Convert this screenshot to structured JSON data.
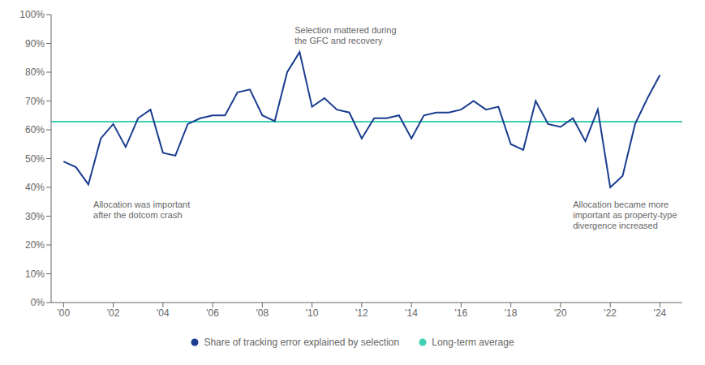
{
  "chart_data": {
    "type": "line",
    "x": [
      2000,
      2000.5,
      2001,
      2001.5,
      2002,
      2002.5,
      2003,
      2003.5,
      2004,
      2004.5,
      2005,
      2005.5,
      2006,
      2006.5,
      2007,
      2007.5,
      2008,
      2008.5,
      2009,
      2009.5,
      2010,
      2010.5,
      2011,
      2011.5,
      2012,
      2012.5,
      2013,
      2013.5,
      2014,
      2014.5,
      2015,
      2015.5,
      2016,
      2016.5,
      2017,
      2017.5,
      2018,
      2018.5,
      2019,
      2019.5,
      2020,
      2020.5,
      2021,
      2021.5,
      2022,
      2022.5,
      2023,
      2023.5,
      2024
    ],
    "series": [
      {
        "name": "Share of tracking error explained by selection",
        "color": "#1a3d8f",
        "values": [
          0.49,
          0.47,
          0.41,
          0.57,
          0.62,
          0.54,
          0.64,
          0.67,
          0.52,
          0.51,
          0.62,
          0.64,
          0.65,
          0.65,
          0.73,
          0.74,
          0.65,
          0.63,
          0.8,
          0.87,
          0.68,
          0.71,
          0.67,
          0.66,
          0.57,
          0.64,
          0.64,
          0.65,
          0.57,
          0.65,
          0.66,
          0.66,
          0.67,
          0.7,
          0.67,
          0.68,
          0.55,
          0.53,
          0.7,
          0.62,
          0.61,
          0.64,
          0.56,
          0.67,
          0.4,
          0.44,
          0.62,
          0.71,
          0.79
        ]
      }
    ],
    "average": {
      "name": "Long-term average",
      "value": 0.628,
      "color": "#3ecfb5"
    },
    "xlim": [
      1999.5,
      2024.9
    ],
    "xticks": [
      {
        "value": 2000,
        "label": "'00"
      },
      {
        "value": 2002,
        "label": "'02"
      },
      {
        "value": 2004,
        "label": "'04"
      },
      {
        "value": 2006,
        "label": "'06"
      },
      {
        "value": 2008,
        "label": "'08"
      },
      {
        "value": 2010,
        "label": "'10"
      },
      {
        "value": 2012,
        "label": "'12"
      },
      {
        "value": 2014,
        "label": "'14"
      },
      {
        "value": 2016,
        "label": "'16"
      },
      {
        "value": 2018,
        "label": "'18"
      },
      {
        "value": 2020,
        "label": "'20"
      },
      {
        "value": 2022,
        "label": "'22"
      },
      {
        "value": 2024,
        "label": "'24"
      }
    ],
    "ylim": [
      0.0,
      1.0
    ],
    "yticks": [
      {
        "value": 0.0,
        "label": "0%"
      },
      {
        "value": 0.1,
        "label": "10%"
      },
      {
        "value": 0.2,
        "label": "20%"
      },
      {
        "value": 0.3,
        "label": "30%"
      },
      {
        "value": 0.4,
        "label": "40%"
      },
      {
        "value": 0.5,
        "label": "50%"
      },
      {
        "value": 0.6,
        "label": "60%"
      },
      {
        "value": 0.7,
        "label": "70%"
      },
      {
        "value": 0.8,
        "label": "80%"
      },
      {
        "value": 0.9,
        "label": "90%"
      },
      {
        "value": 1.0,
        "label": "100%"
      }
    ],
    "annotations": [
      {
        "text": "Selection mattered during\nthe GFC and recovery",
        "x": 2009.3,
        "y": 0.965
      },
      {
        "text": "Allocation was important\nafter the dotcom crash",
        "x": 2001.2,
        "y": 0.36
      },
      {
        "text": "Allocation became more\nimportant as property-type\ndivergence increased",
        "x": 2020.5,
        "y": 0.36
      }
    ],
    "grid": false,
    "legend": "bottom"
  }
}
